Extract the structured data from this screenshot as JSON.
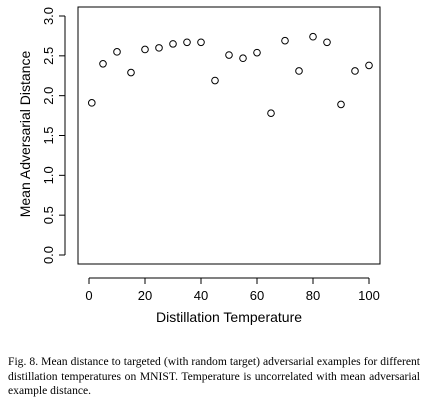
{
  "chart_data": {
    "type": "scatter",
    "title": "",
    "xlabel": "Distillation Temperature",
    "ylabel": "Mean Adversarial Distance",
    "xlim": [
      0,
      100
    ],
    "ylim": [
      0,
      3.0
    ],
    "x_ticks": [
      0,
      20,
      40,
      60,
      80,
      100
    ],
    "y_ticks": [
      "0.0",
      "0.5",
      "1.0",
      "1.5",
      "2.0",
      "2.5",
      "3.0"
    ],
    "grid": false,
    "marker": "open-circle",
    "x": [
      1,
      5,
      10,
      15,
      20,
      25,
      30,
      35,
      40,
      45,
      50,
      55,
      60,
      65,
      70,
      75,
      80,
      85,
      90,
      95,
      100
    ],
    "y": [
      1.91,
      2.4,
      2.55,
      2.29,
      2.58,
      2.6,
      2.65,
      2.67,
      2.67,
      2.19,
      2.51,
      2.47,
      2.54,
      1.78,
      2.69,
      2.31,
      2.74,
      2.67,
      1.89,
      2.31,
      2.38
    ]
  },
  "caption": "Fig. 8.  Mean distance to targeted (with random target) adversarial examples for different distillation temperatures on MNIST. Temperature is uncorrelated with mean adversarial example distance."
}
